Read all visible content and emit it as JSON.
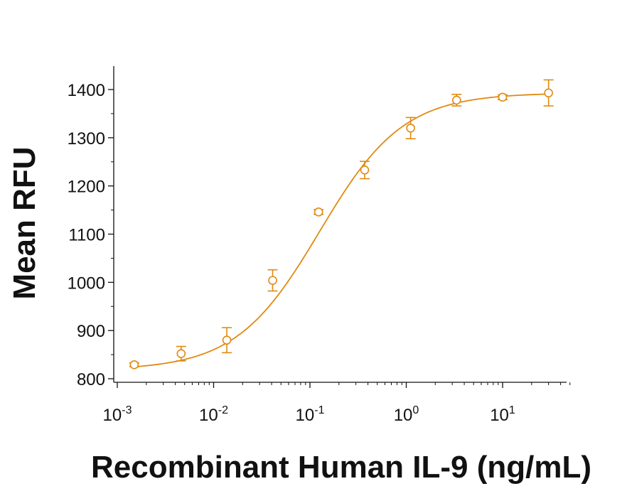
{
  "chart_data": {
    "type": "scatter",
    "title": "",
    "xlabel": "Recombinant Human IL-9 (ng/mL)",
    "ylabel": "Mean RFU",
    "x_scale": "log10",
    "xlim": [
      0.001,
      50
    ],
    "ylim": [
      800,
      1450
    ],
    "grid": false,
    "legend": "none",
    "color": "#E08A12",
    "y_ticks": [
      800,
      900,
      1000,
      1100,
      1200,
      1300,
      1400
    ],
    "x_ticks": [
      {
        "value": 0.001,
        "base": "10",
        "exp": "-3"
      },
      {
        "value": 0.01,
        "base": "10",
        "exp": "-2"
      },
      {
        "value": 0.1,
        "base": "10",
        "exp": "-1"
      },
      {
        "value": 1,
        "base": "10",
        "exp": "0"
      },
      {
        "value": 10,
        "base": "10",
        "exp": "1"
      }
    ],
    "series": [
      {
        "marker": "circle",
        "points": [
          {
            "x": 0.0015,
            "y": 829,
            "err": 4
          },
          {
            "x": 0.0046,
            "y": 852,
            "err": 15
          },
          {
            "x": 0.0137,
            "y": 880,
            "err": 26
          },
          {
            "x": 0.041,
            "y": 1004,
            "err": 22
          },
          {
            "x": 0.123,
            "y": 1146,
            "err": 5
          },
          {
            "x": 0.37,
            "y": 1233,
            "err": 18
          },
          {
            "x": 1.11,
            "y": 1320,
            "err": 22
          },
          {
            "x": 3.33,
            "y": 1378,
            "err": 12
          },
          {
            "x": 10,
            "y": 1384,
            "err": 5
          },
          {
            "x": 30,
            "y": 1393,
            "err": 27
          }
        ]
      }
    ],
    "fit": {
      "type": "4PL",
      "bottom": 818,
      "top": 1393,
      "ec50": 0.126,
      "hill": 1.0
    }
  }
}
